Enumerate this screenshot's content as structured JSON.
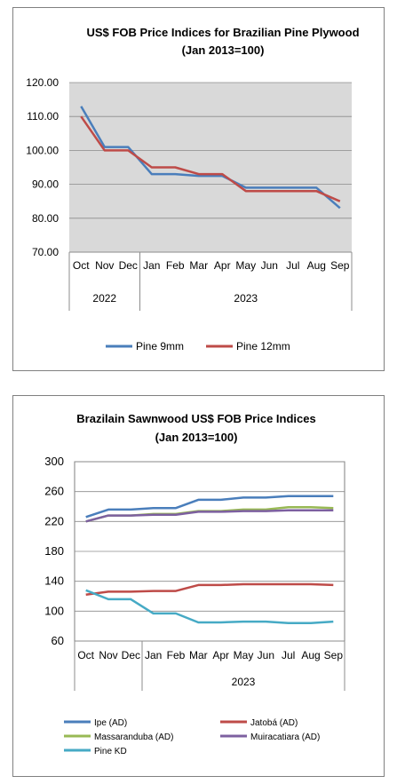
{
  "colors": {
    "pine9": "#4A7EBB",
    "pine12": "#BE4B48",
    "ipe": "#4A7EBB",
    "jatoba": "#BE4B48",
    "massaranduba": "#98B954",
    "muiracatiara": "#7D60A0",
    "pinekd": "#46AAC5",
    "plot_bg": "#D9D9D9",
    "panel_border": "#808080"
  },
  "chart_data": [
    {
      "type": "line",
      "title_line1": "US$ FOB Price Indices for Brazilian  Pine Plywood",
      "title_line2": "(Jan 2013=100)",
      "categories": [
        "Oct",
        "Nov",
        "Dec",
        "Jan",
        "Feb",
        "Mar",
        "Apr",
        "May",
        "Jun",
        "Jul",
        "Aug",
        "Sep"
      ],
      "year_groups": [
        {
          "label": "2022",
          "count": 3
        },
        {
          "label": "2023",
          "count": 9
        }
      ],
      "ylim": [
        70,
        120
      ],
      "yticks": [
        "70.00",
        "80.00",
        "90.00",
        "100.00",
        "110.00",
        "120.00"
      ],
      "legend_position": "bottom",
      "series": [
        {
          "name": "Pine 9mm",
          "color_key": "pine9",
          "values": [
            113,
            101,
            101,
            93,
            93,
            92.5,
            92.5,
            89,
            89,
            89,
            89,
            83
          ]
        },
        {
          "name": "Pine 12mm",
          "color_key": "pine12",
          "values": [
            110,
            100,
            100,
            95,
            95,
            93,
            93,
            88,
            88,
            88,
            88,
            85
          ]
        }
      ]
    },
    {
      "type": "line",
      "title_line1": "Brazilain Sawnwood US$ FOB Price Indices",
      "title_line2": "(Jan 2013=100)",
      "categories": [
        "Oct",
        "Nov",
        "Dec",
        "Jan",
        "Feb",
        "Mar",
        "Apr",
        "May",
        "Jun",
        "Jul",
        "Aug",
        "Sep"
      ],
      "year_groups": [
        {
          "label": "",
          "count": 3
        },
        {
          "label": "2023",
          "count": 9
        }
      ],
      "ylim": [
        60,
        300
      ],
      "yticks": [
        "60",
        "100",
        "140",
        "180",
        "220",
        "260",
        "300"
      ],
      "legend_position": "bottom",
      "series": [
        {
          "name": "Ipe (AD)",
          "color_key": "ipe",
          "values": [
            226,
            236,
            236,
            238,
            238,
            249,
            249,
            252,
            252,
            254,
            254,
            254
          ]
        },
        {
          "name": "Jatobá (AD)",
          "color_key": "jatoba",
          "values": [
            122,
            126,
            126,
            127,
            127,
            135,
            135,
            136,
            136,
            136,
            136,
            135
          ]
        },
        {
          "name": "Massaranduba (AD)",
          "color_key": "massaranduba",
          "values": [
            220,
            228,
            228,
            230,
            230,
            234,
            234,
            236,
            236,
            239,
            239,
            238
          ]
        },
        {
          "name": "Muiracatiara (AD)",
          "color_key": "muiracatiara",
          "values": [
            220,
            228,
            228,
            229,
            229,
            233,
            233,
            234,
            234,
            235,
            235,
            235
          ]
        },
        {
          "name": "Pine KD",
          "color_key": "pinekd",
          "values": [
            128,
            116,
            116,
            97,
            97,
            85,
            85,
            86,
            86,
            84,
            84,
            86
          ]
        }
      ]
    }
  ]
}
